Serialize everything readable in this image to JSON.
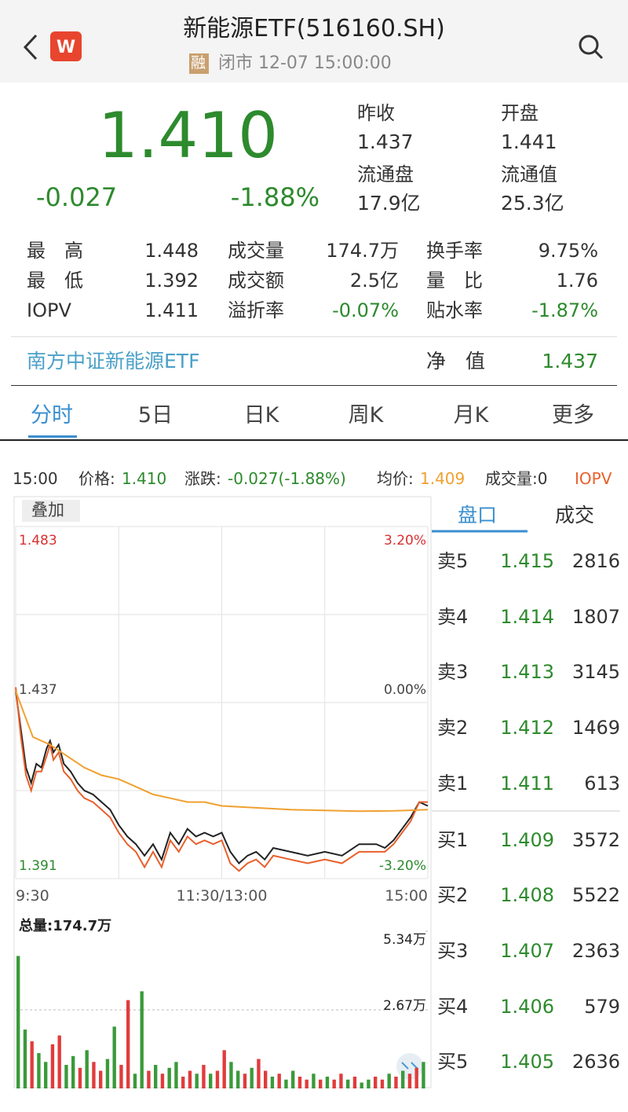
{
  "header": {
    "title": "新能源ETF(516160.SH)",
    "badge": "融",
    "status": "闭市 12-07 15:00:00"
  },
  "quote": {
    "price": "1.410",
    "change": "-0.027",
    "change_pct": "-1.88%",
    "stats": [
      {
        "label": "昨收",
        "value": "1.437"
      },
      {
        "label": "开盘",
        "value": "1.441"
      },
      {
        "label": "流通盘",
        "value": "17.9亿"
      },
      {
        "label": "流通值",
        "value": "25.3亿"
      }
    ]
  },
  "details": [
    [
      {
        "label": "最　高",
        "value": "1.448"
      },
      {
        "label": "成交量",
        "value": "174.7万"
      },
      {
        "label": "换手率",
        "value": "9.75%"
      }
    ],
    [
      {
        "label": "最　低",
        "value": "1.392"
      },
      {
        "label": "成交额",
        "value": "2.5亿"
      },
      {
        "label": "量　比",
        "value": "1.76"
      }
    ],
    [
      {
        "label": "IOPV",
        "value": "1.411"
      },
      {
        "label": "溢折率",
        "value": "-0.07%"
      },
      {
        "label": "贴水率",
        "value": "-1.87%"
      }
    ]
  ],
  "fund": {
    "name": "南方中证新能源ETF",
    "nav_label": "净　值",
    "nav": "1.437"
  },
  "tabs": [
    "分时",
    "5日",
    "日K",
    "周K",
    "月K",
    "更多"
  ],
  "info_bar": {
    "time": "15:00",
    "price_label": "价格:",
    "price": "1.410",
    "change_label": "涨跌:",
    "change": "-0.027(-1.88%)",
    "avg_label": "均价:",
    "avg": "1.409",
    "volume": "成交量:0",
    "iopv": "IOPV"
  },
  "overlay_button": "叠加",
  "chart_data": [
    {
      "type": "line",
      "xlim": [
        0,
        240
      ],
      "xticks": [
        {
          "value": 0,
          "label": "9:30"
        },
        {
          "value": 120,
          "label": "11:30/13:00"
        },
        {
          "value": 240,
          "label": "15:00"
        }
      ],
      "ylim": [
        1.391,
        1.483
      ],
      "yticks": [
        {
          "value": 1.483,
          "label": "1.483"
        },
        {
          "value": 1.437,
          "label": "1.437"
        },
        {
          "value": 1.391,
          "label": "1.391"
        }
      ],
      "y2lim": [
        -3.2,
        3.2
      ],
      "y2ticks": [
        {
          "value": 3.2,
          "label": "3.20%"
        },
        {
          "value": 0,
          "label": "0.00%"
        },
        {
          "value": -3.2,
          "label": "-3.20%"
        }
      ],
      "grid": true,
      "series": [
        {
          "color": "#222222",
          "x": [
            0,
            3,
            6,
            9,
            12,
            15,
            18,
            20,
            22,
            25,
            28,
            32,
            36,
            40,
            45,
            50,
            55,
            60,
            65,
            70,
            75,
            80,
            85,
            90,
            95,
            100,
            105,
            110,
            115,
            120,
            125,
            130,
            135,
            140,
            145,
            150,
            160,
            170,
            180,
            190,
            200,
            210,
            215,
            220,
            225,
            230,
            235,
            240
          ],
          "values": [
            1.44,
            1.43,
            1.42,
            1.416,
            1.421,
            1.42,
            1.425,
            1.427,
            1.424,
            1.426,
            1.421,
            1.419,
            1.416,
            1.414,
            1.413,
            1.411,
            1.409,
            1.405,
            1.402,
            1.4,
            1.397,
            1.4,
            1.396,
            1.403,
            1.4,
            1.404,
            1.402,
            1.403,
            1.402,
            1.403,
            1.398,
            1.395,
            1.397,
            1.398,
            1.396,
            1.399,
            1.398,
            1.397,
            1.398,
            1.397,
            1.4,
            1.4,
            1.399,
            1.401,
            1.404,
            1.407,
            1.411,
            1.41
          ]
        },
        {
          "color": "#e8602c",
          "x": [
            0,
            3,
            6,
            9,
            12,
            15,
            18,
            20,
            22,
            25,
            28,
            32,
            36,
            40,
            45,
            50,
            55,
            60,
            65,
            70,
            75,
            80,
            85,
            90,
            95,
            100,
            105,
            110,
            115,
            120,
            125,
            130,
            135,
            140,
            145,
            150,
            160,
            170,
            180,
            190,
            200,
            210,
            215,
            220,
            225,
            230,
            235,
            240
          ],
          "values": [
            1.441,
            1.428,
            1.418,
            1.414,
            1.419,
            1.419,
            1.423,
            1.426,
            1.422,
            1.424,
            1.419,
            1.417,
            1.414,
            1.412,
            1.411,
            1.409,
            1.407,
            1.403,
            1.4,
            1.398,
            1.394,
            1.398,
            1.394,
            1.401,
            1.398,
            1.402,
            1.4,
            1.401,
            1.4,
            1.401,
            1.395,
            1.393,
            1.395,
            1.396,
            1.394,
            1.397,
            1.396,
            1.395,
            1.396,
            1.395,
            1.398,
            1.398,
            1.398,
            1.4,
            1.403,
            1.406,
            1.411,
            1.411
          ]
        },
        {
          "color": "#f0a030",
          "x": [
            0,
            10,
            20,
            30,
            40,
            50,
            60,
            70,
            80,
            90,
            100,
            110,
            120,
            140,
            160,
            180,
            200,
            220,
            240
          ],
          "values": [
            1.44,
            1.428,
            1.426,
            1.423,
            1.42,
            1.418,
            1.417,
            1.415,
            1.413,
            1.412,
            1.411,
            1.411,
            1.41,
            1.4095,
            1.409,
            1.4088,
            1.4086,
            1.4087,
            1.409
          ]
        }
      ]
    },
    {
      "type": "bar",
      "title": "总量:174.7万",
      "xlim": [
        0,
        240
      ],
      "ylim": [
        0,
        5.34
      ],
      "yticks": [
        {
          "value": 5.34,
          "label": "5.34万"
        },
        {
          "value": 2.67,
          "label": "2.67万"
        }
      ],
      "x": [
        0,
        4,
        8,
        12,
        16,
        20,
        24,
        28,
        32,
        36,
        40,
        44,
        48,
        52,
        56,
        60,
        64,
        68,
        72,
        76,
        80,
        84,
        88,
        92,
        96,
        100,
        104,
        108,
        112,
        116,
        120,
        124,
        128,
        132,
        136,
        140,
        144,
        148,
        152,
        156,
        160,
        164,
        168,
        172,
        176,
        180,
        184,
        188,
        192,
        196,
        200,
        204,
        208,
        212,
        216,
        220,
        224,
        228,
        232,
        236
      ],
      "values": [
        4.5,
        2.0,
        1.6,
        1.2,
        0.9,
        1.5,
        1.8,
        0.8,
        1.1,
        0.7,
        1.3,
        0.9,
        0.6,
        1.0,
        2.1,
        0.8,
        3.0,
        0.5,
        3.3,
        0.6,
        0.8,
        0.5,
        0.7,
        0.9,
        0.4,
        0.6,
        0.5,
        0.8,
        0.5,
        0.6,
        1.3,
        0.9,
        0.6,
        0.5,
        0.7,
        1.0,
        0.6,
        0.4,
        0.5,
        0.3,
        0.6,
        0.4,
        0.3,
        0.5,
        0.3,
        0.4,
        0.3,
        0.5,
        0.3,
        0.4,
        0.2,
        0.3,
        0.4,
        0.3,
        0.5,
        0.4,
        0.6,
        0.5,
        0.7,
        0.9
      ],
      "colors": [
        "#3a9a3a",
        "#3a9a3a",
        "#e03c3c",
        "#3a9a3a",
        "#3a9a3a",
        "#e03c3c",
        "#e03c3c",
        "#3a9a3a",
        "#3a9a3a",
        "#e03c3c",
        "#3a9a3a",
        "#e03c3c",
        "#e03c3c",
        "#3a9a3a",
        "#3a9a3a",
        "#e03c3c",
        "#e03c3c",
        "#3a9a3a",
        "#3a9a3a",
        "#e03c3c",
        "#3a9a3a",
        "#e03c3c",
        "#3a9a3a",
        "#3a9a3a",
        "#e03c3c",
        "#e03c3c",
        "#3a9a3a",
        "#e03c3c",
        "#3a9a3a",
        "#e03c3c",
        "#e03c3c",
        "#3a9a3a",
        "#3a9a3a",
        "#e03c3c",
        "#3a9a3a",
        "#e03c3c",
        "#e03c3c",
        "#3a9a3a",
        "#e03c3c",
        "#3a9a3a",
        "#3a9a3a",
        "#e03c3c",
        "#e03c3c",
        "#3a9a3a",
        "#e03c3c",
        "#3a9a3a",
        "#e03c3c",
        "#e03c3c",
        "#3a9a3a",
        "#e03c3c",
        "#3a9a3a",
        "#3a9a3a",
        "#e03c3c",
        "#e03c3c",
        "#3a9a3a",
        "#e03c3c",
        "#3a9a3a",
        "#e03c3c",
        "#e03c3c",
        "#3a9a3a"
      ]
    }
  ],
  "order_book": {
    "tabs": [
      "盘口",
      "成交"
    ],
    "rows": [
      {
        "label": "卖5",
        "price": "1.415",
        "volume": "2816"
      },
      {
        "label": "卖4",
        "price": "1.414",
        "volume": "1807"
      },
      {
        "label": "卖3",
        "price": "1.413",
        "volume": "3145"
      },
      {
        "label": "卖2",
        "price": "1.412",
        "volume": "1469"
      },
      {
        "label": "卖1",
        "price": "1.411",
        "volume": "613"
      },
      {
        "label": "买1",
        "price": "1.409",
        "volume": "3572"
      },
      {
        "label": "买2",
        "price": "1.408",
        "volume": "5522"
      },
      {
        "label": "买3",
        "price": "1.407",
        "volume": "2363"
      },
      {
        "label": "买4",
        "price": "1.406",
        "volume": "579"
      },
      {
        "label": "买5",
        "price": "1.405",
        "volume": "2636"
      }
    ]
  }
}
